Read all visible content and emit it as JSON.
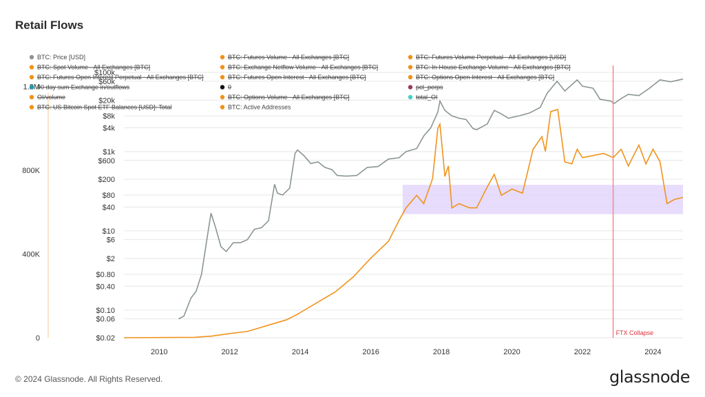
{
  "header": {
    "title": "Retail Flows"
  },
  "footer": {
    "copyright": "© 2024 Glassnode. All Rights Reserved.",
    "brand": "glassnode"
  },
  "colors": {
    "price": "#8a9690",
    "active": "#f0921a",
    "band": "#e3d6fb",
    "event": "#f28890",
    "grid": "#e6e6e6"
  },
  "chart_data": {
    "type": "line",
    "title": "Retail Flows",
    "x_ticks": [
      "2010",
      "2012",
      "2014",
      "2016",
      "2018",
      "2020",
      "2022",
      "2024"
    ],
    "x_range": [
      2009.0,
      2024.85
    ],
    "right_axis": {
      "scale": "log",
      "range": [
        0.02,
        150000
      ],
      "tick_labels": [
        "$100k",
        "$60k",
        "$20k",
        "$8k",
        "$4k",
        "$1k",
        "$600",
        "$200",
        "$80",
        "$40",
        "$10",
        "$6",
        "$2",
        "$0.80",
        "$0.40",
        "$0.10",
        "$0.06",
        "$0.02"
      ],
      "tick_values": [
        100000,
        60000,
        20000,
        8000,
        4000,
        1000,
        600,
        200,
        80,
        40,
        10,
        6,
        2,
        0.8,
        0.4,
        0.1,
        0.06,
        0.02
      ]
    },
    "left_axis": {
      "scale": "linear",
      "range": [
        0,
        1300000
      ],
      "tick_labels": [
        "0",
        "400K",
        "800K",
        "1.2M"
      ],
      "tick_values": [
        0,
        400000,
        800000,
        1200000
      ]
    },
    "highlight_band": {
      "y_range_active": [
        590000,
        730000
      ],
      "x_range": [
        2016.9,
        2024.85
      ]
    },
    "event_line": {
      "x": 2022.87,
      "label": "FTX Collapse"
    },
    "legend": [
      {
        "label": "BTC: Price [USD]",
        "color": "#8a9690",
        "active": true
      },
      {
        "label": "BTC: Futures Volume - All Exchanges [BTC]",
        "color": "#f0921a",
        "active": false
      },
      {
        "label": "BTC: Futures Volume Perpetual - All Exchanges [USD]",
        "color": "#f0921a",
        "active": false
      },
      {
        "label": "BTC: Spot Volume - All Exchanges [BTC]",
        "color": "#f0921a",
        "active": false
      },
      {
        "label": "BTC: Exchange Netflow Volume - All Exchanges [BTC]",
        "color": "#f0921a",
        "active": false
      },
      {
        "label": "BTC: In-House Exchange Volume - All Exchanges [BTC]",
        "color": "#f0921a",
        "active": false
      },
      {
        "label": "BTC: Futures Open Interest Perpetual - All Exchanges [BTC]",
        "color": "#f0921a",
        "active": false
      },
      {
        "label": "BTC: Futures Open Interest - All Exchanges [BTC]",
        "color": "#f0921a",
        "active": false
      },
      {
        "label": "BTC: Options Open Interest - All Exchanges [BTC]",
        "color": "#f0921a",
        "active": false
      },
      {
        "label": "90 day sum Exchange in/outflows",
        "color": "#1f9aa8",
        "active": false
      },
      {
        "label": "0",
        "color": "#111111",
        "active": false
      },
      {
        "label": "pct_perps",
        "color": "#9b3a60",
        "active": false
      },
      {
        "label": "OI/volume",
        "color": "#f0921a",
        "active": false
      },
      {
        "label": "BTC: Options Volume - All Exchanges [BTC]",
        "color": "#f0921a",
        "active": false
      },
      {
        "label": "total_OI",
        "color": "#3fd3c0",
        "active": false
      },
      {
        "label": "BTC: US Bitcoin Spot ETF Balances [USD]: Total",
        "color": "#f0921a",
        "active": false
      },
      {
        "label": "BTC: Active Addresses",
        "color": "#f0921a",
        "active": true
      }
    ],
    "series": [
      {
        "name": "BTC: Price [USD]",
        "axis": "right",
        "x": [
          2010.55,
          2010.7,
          2010.9,
          2011.05,
          2011.2,
          2011.3,
          2011.42,
          2011.47,
          2011.6,
          2011.75,
          2011.9,
          2012.1,
          2012.3,
          2012.5,
          2012.7,
          2012.9,
          2013.1,
          2013.27,
          2013.35,
          2013.5,
          2013.7,
          2013.85,
          2013.92,
          2014.1,
          2014.3,
          2014.5,
          2014.7,
          2014.9,
          2015.05,
          2015.3,
          2015.6,
          2015.9,
          2016.2,
          2016.5,
          2016.8,
          2017.0,
          2017.3,
          2017.5,
          2017.7,
          2017.9,
          2017.96,
          2018.1,
          2018.3,
          2018.5,
          2018.7,
          2018.9,
          2019.0,
          2019.3,
          2019.5,
          2019.7,
          2019.9,
          2020.2,
          2020.5,
          2020.8,
          2021.0,
          2021.28,
          2021.5,
          2021.85,
          2022.0,
          2022.3,
          2022.5,
          2022.8,
          2022.9,
          2023.1,
          2023.3,
          2023.6,
          2023.9,
          2024.2,
          2024.5,
          2024.85
        ],
        "values": [
          0.06,
          0.07,
          0.2,
          0.3,
          0.8,
          3,
          15,
          28,
          12,
          4,
          3,
          5,
          5,
          6,
          11,
          12,
          18,
          150,
          90,
          80,
          120,
          900,
          1100,
          800,
          500,
          550,
          400,
          350,
          250,
          240,
          250,
          400,
          420,
          650,
          700,
          1000,
          1200,
          2500,
          4000,
          10000,
          19000,
          11000,
          8000,
          7000,
          6500,
          3800,
          3600,
          5000,
          11000,
          9000,
          7000,
          8000,
          9500,
          13000,
          30000,
          60000,
          34000,
          65000,
          45000,
          40000,
          21000,
          19000,
          16500,
          22000,
          28000,
          26000,
          40000,
          65000,
          58000,
          68000
        ]
      },
      {
        "name": "BTC: Active Addresses",
        "axis": "left",
        "x": [
          2009.0,
          2011.0,
          2011.5,
          2012.0,
          2012.5,
          2013.0,
          2013.3,
          2013.6,
          2013.9,
          2014.0,
          2014.5,
          2015.0,
          2015.5,
          2016.0,
          2016.5,
          2016.8,
          2017.0,
          2017.3,
          2017.5,
          2017.75,
          2017.9,
          2017.96,
          2018.1,
          2018.2,
          2018.3,
          2018.5,
          2018.8,
          2019.0,
          2019.3,
          2019.5,
          2019.7,
          2020.0,
          2020.3,
          2020.6,
          2020.85,
          2020.95,
          2021.1,
          2021.3,
          2021.5,
          2021.7,
          2021.85,
          2022.0,
          2022.3,
          2022.6,
          2022.87,
          2023.1,
          2023.3,
          2023.6,
          2023.8,
          2024.0,
          2024.2,
          2024.4,
          2024.6,
          2024.85
        ],
        "values": [
          0,
          2000,
          8000,
          20000,
          30000,
          55000,
          70000,
          85000,
          110000,
          120000,
          170000,
          220000,
          290000,
          380000,
          460000,
          560000,
          620000,
          680000,
          640000,
          760000,
          1000000,
          1020000,
          770000,
          820000,
          620000,
          640000,
          620000,
          620000,
          720000,
          780000,
          680000,
          710000,
          690000,
          900000,
          960000,
          890000,
          1080000,
          1090000,
          840000,
          830000,
          900000,
          860000,
          870000,
          880000,
          860000,
          900000,
          820000,
          920000,
          830000,
          900000,
          840000,
          640000,
          660000,
          670000
        ]
      }
    ]
  }
}
